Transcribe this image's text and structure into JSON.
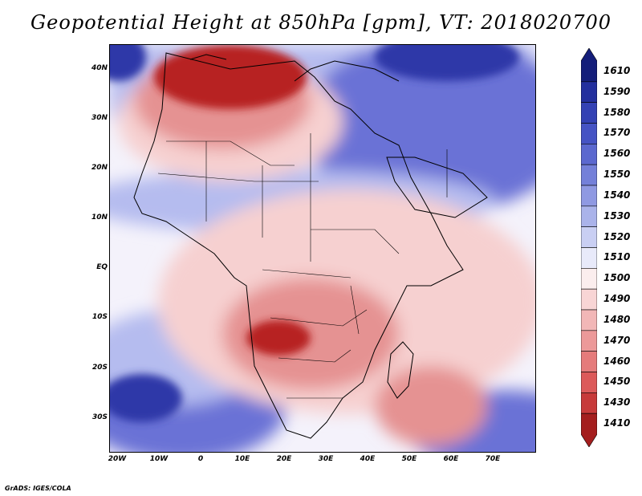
{
  "title": "Geopotential Height at 850hPa [gpm], VT: 2018020700",
  "credit": "GrADS: IGES/COLA",
  "lat_ticks": [
    "40N",
    "30N",
    "20N",
    "10N",
    "EQ",
    "10S",
    "20S",
    "30S"
  ],
  "lon_ticks": [
    "20W",
    "10W",
    "0",
    "10E",
    "20E",
    "30E",
    "40E",
    "50E",
    "60E",
    "70E"
  ],
  "colorbar": {
    "labels": [
      "1610",
      "1590",
      "1580",
      "1570",
      "1560",
      "1550",
      "1540",
      "1530",
      "1520",
      "1510",
      "1500",
      "1490",
      "1480",
      "1470",
      "1460",
      "1450",
      "1430",
      "1410"
    ],
    "colors": [
      "#141e7a",
      "#232f9e",
      "#3341b4",
      "#4553c4",
      "#5b68cf",
      "#7480d9",
      "#8f99e2",
      "#aab3ea",
      "#c9cff3",
      "#e8eafa",
      "#fbeeee",
      "#f8d5d5",
      "#f2b7b7",
      "#ec9999",
      "#e57b7b",
      "#dc5a5a",
      "#c73a3a",
      "#a41e1e"
    ]
  },
  "field_colors": {
    "high_core": "#2e37a8",
    "high": "#6a72d6",
    "high_light": "#b5bcef",
    "neutral": "#f4f2fb",
    "low_light": "#f6d0d0",
    "low": "#e59292",
    "low_core": "#b72222"
  }
}
